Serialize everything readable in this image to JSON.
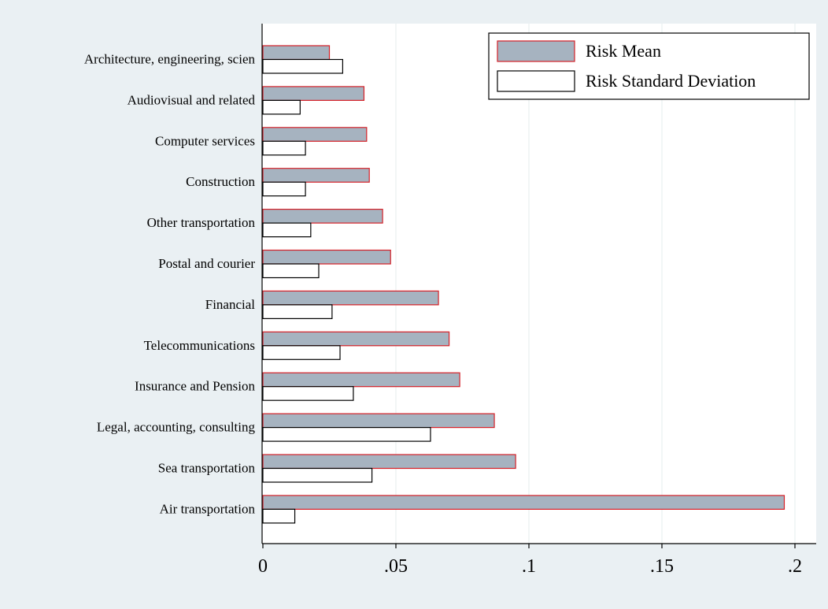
{
  "chart_data": {
    "type": "bar",
    "orientation": "horizontal",
    "categories": [
      "Architecture, engineering, scien",
      "Audiovisual and related",
      "Computer services",
      "Construction",
      "Other transportation",
      "Postal and courier",
      "Financial",
      "Telecommunications",
      "Insurance and Pension",
      "Legal, accounting, consulting",
      "Sea transportation",
      "Air transportation"
    ],
    "series": [
      {
        "name": "Risk Mean",
        "values": [
          0.025,
          0.038,
          0.039,
          0.04,
          0.045,
          0.048,
          0.066,
          0.07,
          0.074,
          0.087,
          0.095,
          0.196
        ],
        "fill": "#a6b3c0",
        "stroke": "#d62027"
      },
      {
        "name": "Risk Standard Deviation",
        "values": [
          0.03,
          0.014,
          0.016,
          0.016,
          0.018,
          0.021,
          0.026,
          0.029,
          0.034,
          0.063,
          0.041,
          0.012
        ],
        "fill": "#ffffff",
        "stroke": "#000000"
      }
    ],
    "xlim": [
      0,
      0.2
    ],
    "xticks": [
      0,
      0.05,
      0.1,
      0.15,
      0.2
    ],
    "xtick_labels": [
      "0",
      ".05",
      ".1",
      ".15",
      ".2"
    ],
    "grid": true,
    "legend_position": "top-right",
    "title": "",
    "xlabel": "",
    "ylabel": "",
    "colors": {
      "outer_background": "#eaf0f3",
      "plot_background": "#ffffff",
      "grid": "#e4ecee"
    }
  }
}
